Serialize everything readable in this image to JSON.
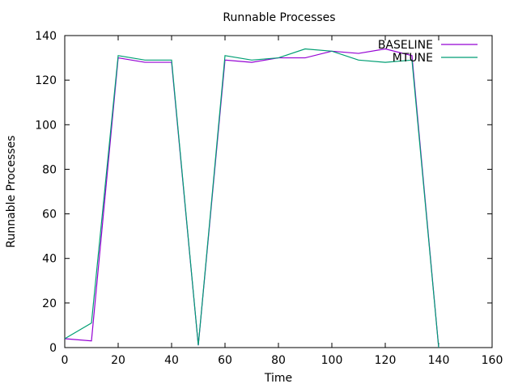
{
  "chart_data": {
    "type": "line",
    "title": "Runnable Processes",
    "xlabel": "Time",
    "ylabel": "Runnable Processes",
    "xlim": [
      0,
      160
    ],
    "ylim": [
      0,
      140
    ],
    "xticks": [
      0,
      20,
      40,
      60,
      80,
      100,
      120,
      140,
      160
    ],
    "yticks": [
      0,
      20,
      40,
      60,
      80,
      100,
      120,
      140
    ],
    "grid": false,
    "legend_position": "top-right",
    "x": [
      0,
      10,
      20,
      30,
      40,
      50,
      60,
      70,
      80,
      90,
      100,
      110,
      120,
      130,
      140
    ],
    "series": [
      {
        "name": "BASELINE",
        "color": "#9400d3",
        "values": [
          4,
          3,
          130,
          128,
          128,
          1,
          129,
          128,
          130,
          130,
          133,
          132,
          134,
          131,
          0
        ]
      },
      {
        "name": "MTUNE",
        "color": "#009e73",
        "values": [
          4,
          11,
          131,
          129,
          129,
          1,
          131,
          129,
          130,
          134,
          133,
          129,
          128,
          129,
          0
        ]
      }
    ]
  }
}
